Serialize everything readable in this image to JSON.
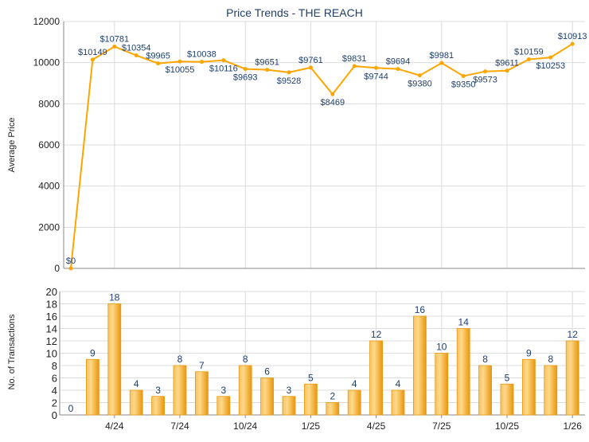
{
  "chart_data": [
    {
      "type": "line",
      "title": "Price Trends - THE REACH",
      "xlabel": "",
      "ylabel": "Average Price",
      "ylim": [
        0,
        12000
      ],
      "yticks": [
        "0",
        "2000",
        "4000",
        "6000",
        "8000",
        "10000",
        "12000"
      ],
      "grid": true,
      "color": "#ffa500",
      "values": [
        0,
        10149,
        10781,
        10354,
        9965,
        10055,
        10038,
        10116,
        9693,
        9651,
        9528,
        9761,
        8469,
        9831,
        9744,
        9694,
        9380,
        9981,
        9350,
        9573,
        9611,
        10159,
        10253,
        10913
      ],
      "labels": [
        "$0",
        "$10149",
        "$10781",
        "$10354",
        "$9965",
        "$10055",
        "$10038",
        "$10116",
        "$9693",
        "$9651",
        "$9528",
        "$9761",
        "$8469",
        "$9831",
        "$9744",
        "$9694",
        "$9380",
        "$9981",
        "$9350",
        "$9573",
        "$9611",
        "$10159",
        "$10253",
        "$10913"
      ]
    },
    {
      "type": "bar",
      "xlabel": "",
      "ylabel": "No. of Transactions",
      "ylim": [
        0,
        20
      ],
      "yticks": [
        "0",
        "2",
        "4",
        "6",
        "8",
        "10",
        "12",
        "14",
        "16",
        "18",
        "20"
      ],
      "grid": true,
      "color": "#f0a830",
      "values": [
        0,
        9,
        18,
        4,
        3,
        8,
        7,
        3,
        8,
        6,
        3,
        5,
        2,
        4,
        12,
        4,
        16,
        10,
        14,
        8,
        5,
        9,
        8,
        12
      ],
      "labels": [
        "0",
        "9",
        "18",
        "4",
        "3",
        "8",
        "7",
        "3",
        "8",
        "6",
        "3",
        "5",
        "2",
        "4",
        "12",
        "4",
        "16",
        "10",
        "14",
        "8",
        "5",
        "9",
        "8",
        "12"
      ],
      "xticks": [
        {
          "index": 2,
          "label": "4/24"
        },
        {
          "index": 5,
          "label": "7/24"
        },
        {
          "index": 8,
          "label": "10/24"
        },
        {
          "index": 11,
          "label": "1/25"
        },
        {
          "index": 14,
          "label": "4/25"
        },
        {
          "index": 17,
          "label": "7/25"
        },
        {
          "index": 20,
          "label": "10/25"
        },
        {
          "index": 23,
          "label": "1/26"
        }
      ]
    }
  ]
}
